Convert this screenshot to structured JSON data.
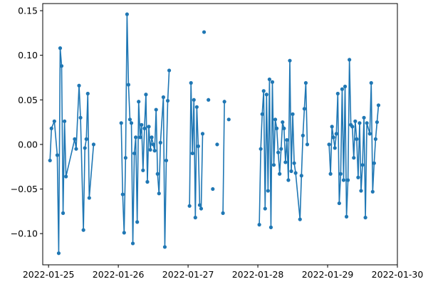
{
  "chart_data": {
    "type": "line",
    "markers": true,
    "grid": false,
    "legend": "none",
    "title": "",
    "xlabel": "",
    "ylabel": "",
    "xlim": [
      "2022-01-24T22:00",
      "2022-01-30T00:00"
    ],
    "ylim": [
      -0.135,
      0.158
    ],
    "x_ticks": [
      "2022-01-25",
      "2022-01-26",
      "2022-01-27",
      "2022-01-28",
      "2022-01-29",
      "2022-01-30"
    ],
    "y_ticks": [
      -0.1,
      -0.05,
      0.0,
      0.05,
      0.1,
      0.15
    ],
    "y_tick_labels": [
      "−0.10",
      "−0.05",
      "0.00",
      "0.05",
      "0.10",
      "0.15"
    ],
    "series": [
      {
        "color": "#1f77b4",
        "segments": [
          [
            [
              "2022-01-25T00:30",
              -0.018
            ],
            [
              "2022-01-25T01:00",
              0.018
            ],
            [
              "2022-01-25T02:00",
              0.026
            ],
            [
              "2022-01-25T03:00",
              -0.012
            ],
            [
              "2022-01-25T03:30",
              -0.122
            ],
            [
              "2022-01-25T04:00",
              0.108
            ],
            [
              "2022-01-25T04:30",
              0.088
            ],
            [
              "2022-01-25T05:00",
              -0.077
            ],
            [
              "2022-01-25T05:30",
              0.026
            ],
            [
              "2022-01-25T06:00",
              -0.036
            ],
            [
              "2022-01-25T09:00",
              0.006
            ],
            [
              "2022-01-25T09:30",
              -0.005
            ],
            [
              "2022-01-25T10:30",
              0.066
            ],
            [
              "2022-01-25T11:00",
              0.03
            ],
            [
              "2022-01-25T12:00",
              -0.096
            ],
            [
              "2022-01-25T12:30",
              -0.004
            ],
            [
              "2022-01-25T13:00",
              0.006
            ],
            [
              "2022-01-25T13:30",
              0.057
            ],
            [
              "2022-01-25T14:00",
              -0.06
            ],
            [
              "2022-01-25T15:30",
              0.0
            ]
          ],
          [
            [
              "2022-01-26T01:00",
              0.024
            ],
            [
              "2022-01-26T01:30",
              -0.056
            ],
            [
              "2022-01-26T02:00",
              -0.099
            ],
            [
              "2022-01-26T02:30",
              -0.015
            ],
            [
              "2022-01-26T03:00",
              0.146
            ],
            [
              "2022-01-26T03:30",
              0.067
            ],
            [
              "2022-01-26T04:00",
              0.028
            ],
            [
              "2022-01-26T04:30",
              0.024
            ],
            [
              "2022-01-26T05:00",
              -0.111
            ],
            [
              "2022-01-26T05:30",
              -0.01
            ],
            [
              "2022-01-26T06:00",
              0.008
            ],
            [
              "2022-01-26T06:30",
              -0.087
            ],
            [
              "2022-01-26T07:00",
              0.048
            ],
            [
              "2022-01-26T07:30",
              0.008
            ],
            [
              "2022-01-26T08:00",
              0.022
            ],
            [
              "2022-01-26T08:30",
              -0.029
            ],
            [
              "2022-01-26T09:00",
              0.018
            ],
            [
              "2022-01-26T09:30",
              0.056
            ],
            [
              "2022-01-26T10:00",
              -0.042
            ],
            [
              "2022-01-26T10:30",
              0.02
            ],
            [
              "2022-01-26T11:00",
              -0.006
            ],
            [
              "2022-01-26T11:30",
              0.008
            ],
            [
              "2022-01-26T12:00",
              0.0
            ],
            [
              "2022-01-26T12:30",
              -0.007
            ],
            [
              "2022-01-26T13:00",
              0.039
            ],
            [
              "2022-01-26T13:30",
              -0.033
            ],
            [
              "2022-01-26T14:00",
              -0.055
            ],
            [
              "2022-01-26T14:30",
              0.002
            ],
            [
              "2022-01-26T15:30",
              0.053
            ],
            [
              "2022-01-26T16:00",
              -0.115
            ],
            [
              "2022-01-26T16:30",
              -0.018
            ],
            [
              "2022-01-26T17:00",
              0.049
            ],
            [
              "2022-01-26T17:30",
              0.083
            ]
          ],
          [
            [
              "2022-01-27T00:30",
              -0.069
            ],
            [
              "2022-01-27T01:00",
              0.069
            ],
            [
              "2022-01-27T01:30",
              -0.01
            ],
            [
              "2022-01-27T02:00",
              0.05
            ],
            [
              "2022-01-27T02:30",
              -0.082
            ],
            [
              "2022-01-27T03:00",
              0.042
            ],
            [
              "2022-01-27T03:30",
              -0.002
            ],
            [
              "2022-01-27T04:00",
              -0.068
            ],
            [
              "2022-01-27T04:30",
              -0.072
            ],
            [
              "2022-01-27T05:00",
              0.012
            ]
          ],
          [
            [
              "2022-01-27T05:30",
              0.126
            ]
          ],
          [
            [
              "2022-01-27T07:00",
              0.05
            ]
          ],
          [
            [
              "2022-01-27T08:30",
              -0.05
            ]
          ],
          [
            [
              "2022-01-27T10:00",
              0.0
            ]
          ],
          [
            [
              "2022-01-27T12:00",
              -0.077
            ],
            [
              "2022-01-27T12:30",
              0.048
            ]
          ],
          [
            [
              "2022-01-27T14:00",
              0.028
            ]
          ],
          [
            [
              "2022-01-28T00:30",
              -0.09
            ],
            [
              "2022-01-28T01:00",
              -0.005
            ],
            [
              "2022-01-28T01:30",
              0.034
            ],
            [
              "2022-01-28T02:00",
              0.06
            ],
            [
              "2022-01-28T02:30",
              -0.072
            ],
            [
              "2022-01-28T03:00",
              0.056
            ],
            [
              "2022-01-28T03:30",
              -0.052
            ],
            [
              "2022-01-28T04:00",
              0.073
            ],
            [
              "2022-01-28T04:30",
              -0.093
            ],
            [
              "2022-01-28T05:00",
              0.07
            ],
            [
              "2022-01-28T05:30",
              -0.023
            ],
            [
              "2022-01-28T06:00",
              0.028
            ],
            [
              "2022-01-28T06:30",
              0.018
            ],
            [
              "2022-01-28T07:00",
              -0.009
            ],
            [
              "2022-01-28T07:30",
              -0.033
            ],
            [
              "2022-01-28T08:00",
              -0.005
            ],
            [
              "2022-01-28T08:30",
              0.025
            ],
            [
              "2022-01-28T09:00",
              0.018
            ],
            [
              "2022-01-28T09:30",
              -0.02
            ],
            [
              "2022-01-28T10:00",
              0.005
            ],
            [
              "2022-01-28T10:30",
              -0.04
            ],
            [
              "2022-01-28T11:00",
              0.094
            ],
            [
              "2022-01-28T11:30",
              -0.03
            ],
            [
              "2022-01-28T12:00",
              0.034
            ],
            [
              "2022-01-28T12:30",
              -0.021
            ],
            [
              "2022-01-28T13:00",
              -0.032
            ],
            [
              "2022-01-28T14:30",
              -0.084
            ],
            [
              "2022-01-28T15:00",
              -0.035
            ],
            [
              "2022-01-28T15:30",
              0.01
            ],
            [
              "2022-01-28T16:00",
              0.04
            ],
            [
              "2022-01-28T16:30",
              0.069
            ],
            [
              "2022-01-28T17:00",
              0.0
            ]
          ],
          [
            [
              "2022-01-29T00:30",
              0.0
            ],
            [
              "2022-01-29T01:00",
              -0.033
            ],
            [
              "2022-01-29T01:30",
              0.02
            ],
            [
              "2022-01-29T02:00",
              0.008
            ],
            [
              "2022-01-29T02:30",
              -0.004
            ],
            [
              "2022-01-29T03:00",
              0.012
            ],
            [
              "2022-01-29T03:30",
              0.057
            ],
            [
              "2022-01-29T04:00",
              -0.066
            ],
            [
              "2022-01-29T04:30",
              -0.033
            ],
            [
              "2022-01-29T05:00",
              0.062
            ],
            [
              "2022-01-29T05:30",
              -0.04
            ],
            [
              "2022-01-29T06:00",
              0.065
            ],
            [
              "2022-01-29T06:30",
              -0.081
            ],
            [
              "2022-01-29T07:00",
              -0.04
            ],
            [
              "2022-01-29T07:30",
              0.095
            ],
            [
              "2022-01-29T08:00",
              0.022
            ],
            [
              "2022-01-29T08:30",
              0.02
            ],
            [
              "2022-01-29T09:00",
              -0.015
            ],
            [
              "2022-01-29T09:30",
              0.026
            ],
            [
              "2022-01-29T10:00",
              0.006
            ],
            [
              "2022-01-29T10:30",
              -0.037
            ],
            [
              "2022-01-29T11:00",
              0.024
            ],
            [
              "2022-01-29T11:30",
              -0.052
            ],
            [
              "2022-01-29T12:00",
              -0.023
            ],
            [
              "2022-01-29T12:30",
              0.03
            ],
            [
              "2022-01-29T13:00",
              -0.082
            ],
            [
              "2022-01-29T13:30",
              0.024
            ],
            [
              "2022-01-29T14:30",
              0.012
            ],
            [
              "2022-01-29T15:00",
              0.069
            ],
            [
              "2022-01-29T15:30",
              -0.053
            ],
            [
              "2022-01-29T16:00",
              -0.021
            ],
            [
              "2022-01-29T16:30",
              0.006
            ],
            [
              "2022-01-29T17:00",
              0.025
            ],
            [
              "2022-01-29T17:30",
              0.044
            ]
          ]
        ]
      }
    ]
  }
}
